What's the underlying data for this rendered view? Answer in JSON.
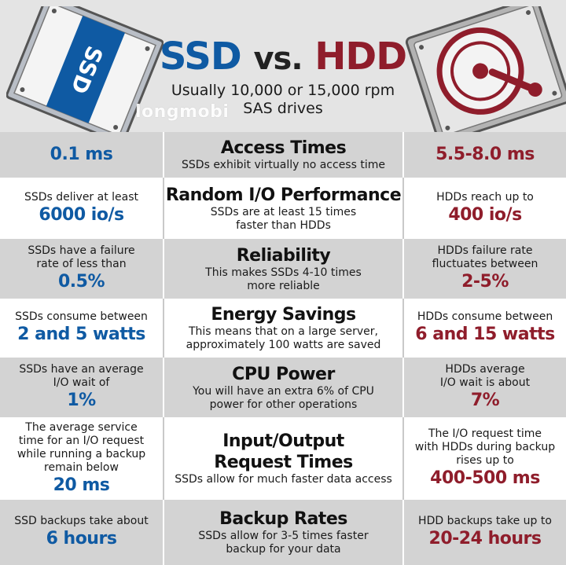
{
  "header": {
    "title_ssd": "SSD",
    "title_vs": "vs.",
    "title_hdd": "HDD",
    "subtitle_line1": "Usually 10,000 or 15,000 rpm",
    "subtitle_line2": "SAS drives",
    "ssd_label": "SSD",
    "watermark": "longmobi"
  },
  "colors": {
    "ssd_blue": "#0f5aa3",
    "hdd_red": "#8f1d2b",
    "row_shade": "#d3d3d3",
    "header_bg": "#e4e4e4"
  },
  "rows": [
    {
      "category": [
        "Access Times"
      ],
      "description": [
        "SSDs exhibit virtually no access time"
      ],
      "ssd_text": [],
      "ssd_value": "0.1 ms",
      "hdd_text": [],
      "hdd_value": "5.5-8.0 ms"
    },
    {
      "category": [
        "Random I/O Performance"
      ],
      "description": [
        "SSDs are at least 15 times",
        "faster than HDDs"
      ],
      "ssd_text": [
        "SSDs deliver at least"
      ],
      "ssd_value": "6000 io/s",
      "hdd_text": [
        "HDDs reach up to"
      ],
      "hdd_value": "400 io/s"
    },
    {
      "category": [
        "Reliability"
      ],
      "description": [
        "This makes SSDs 4-10 times",
        "more reliable"
      ],
      "ssd_text": [
        "SSDs have a failure",
        "rate of less than"
      ],
      "ssd_value": "0.5%",
      "hdd_text": [
        "HDDs failure rate",
        "fluctuates between"
      ],
      "hdd_value": "2-5%"
    },
    {
      "category": [
        "Energy Savings"
      ],
      "description": [
        "This means that on a large server,",
        "approximately 100 watts are saved"
      ],
      "ssd_text": [
        "SSDs consume between"
      ],
      "ssd_value": "2 and 5 watts",
      "hdd_text": [
        "HDDs consume between"
      ],
      "hdd_value": "6 and 15 watts"
    },
    {
      "category": [
        "CPU Power"
      ],
      "description": [
        "You will have an extra 6% of CPU",
        "power for other operations"
      ],
      "ssd_text": [
        "SSDs have an average",
        "I/O wait of"
      ],
      "ssd_value": "1%",
      "hdd_text": [
        "HDDs average",
        "I/O wait is about"
      ],
      "hdd_value": "7%"
    },
    {
      "category": [
        "Input/Output",
        "Request Times"
      ],
      "description": [
        "SSDs allow for much faster data access"
      ],
      "ssd_text": [
        "The average service",
        "time for an I/O request",
        "while running a backup",
        "remain below"
      ],
      "ssd_value": "20 ms",
      "hdd_text": [
        "The I/O request time",
        "with HDDs during backup",
        "rises up to"
      ],
      "hdd_value": "400-500 ms"
    },
    {
      "category": [
        "Backup Rates"
      ],
      "description": [
        "SSDs allow for 3-5 times faster",
        "backup for your data"
      ],
      "ssd_text": [
        "SSD backups take about"
      ],
      "ssd_value": "6 hours",
      "hdd_text": [
        "HDD backups take up to"
      ],
      "hdd_value": "20-24 hours"
    }
  ]
}
